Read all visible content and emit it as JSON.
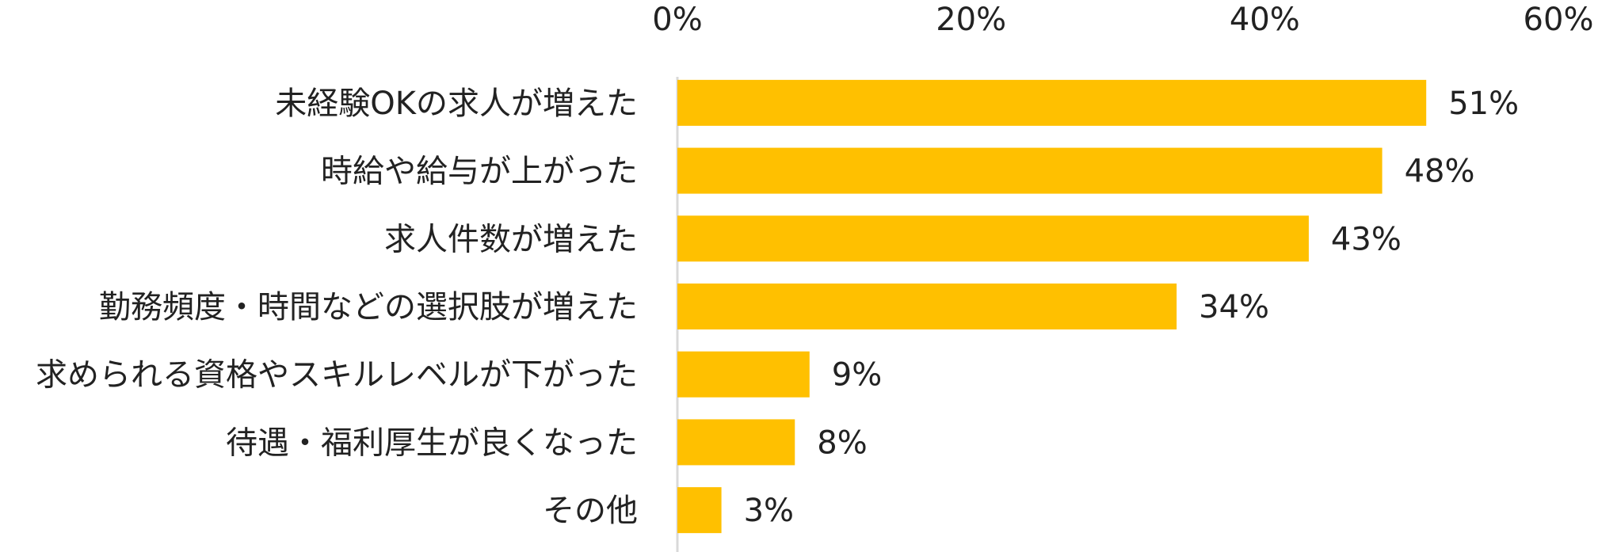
{
  "chart_data": {
    "type": "bar",
    "orientation": "horizontal",
    "categories": [
      "未経験OKの求人が増えた",
      "時給や給与が上がった",
      "求人件数が増えた",
      "勤務頻度・時間などの選択肢が増えた",
      "求められる資格やスキルレベルが下がった",
      "待遇・福利厚生が良くなった",
      "その他"
    ],
    "values": [
      51,
      48,
      43,
      34,
      9,
      8,
      3
    ],
    "value_labels": [
      "51%",
      "48%",
      "43%",
      "34%",
      "9%",
      "8%",
      "3%"
    ],
    "xlim": [
      0,
      60
    ],
    "x_ticks": [
      0,
      20,
      40,
      60
    ],
    "x_tick_labels": [
      "0%",
      "20%",
      "40%",
      "60%"
    ],
    "axis_position": "top",
    "grid": false,
    "legend": "none",
    "bar_color": "#FFC000",
    "axis_color": "#D9D9D9"
  }
}
